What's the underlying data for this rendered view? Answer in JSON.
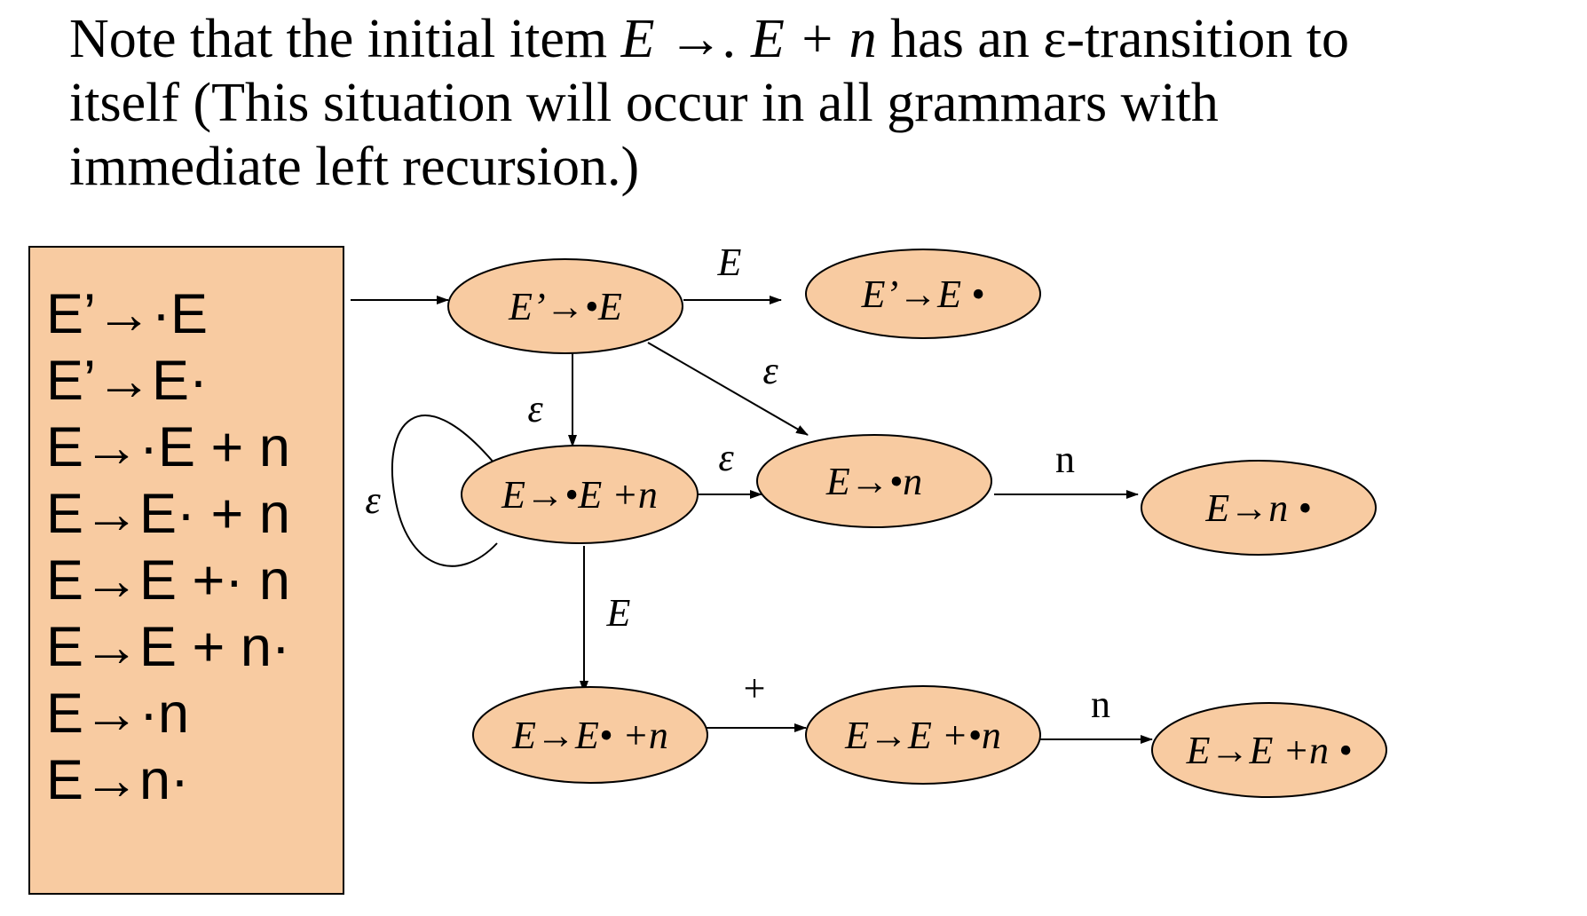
{
  "caption": {
    "line1_a": "Note that the initial item ",
    "line1_item": "E →. E + n",
    "line1_b": " has an ε-transition to",
    "line2": "itself (This situation will occur in all grammars with",
    "line3": "immediate left recursion.)"
  },
  "items": [
    "E’→·E",
    "E’→E·",
    "E→·E + n",
    "E→E· + n",
    "E→E +· n",
    "E→E + n·",
    "E→·n",
    "E→n·"
  ],
  "nodes": [
    {
      "id": "n1",
      "label": "E’→•E"
    },
    {
      "id": "n2",
      "label": "E’→E •"
    },
    {
      "id": "n3",
      "label": "E→•E +n"
    },
    {
      "id": "n4",
      "label": "E→•n"
    },
    {
      "id": "n5",
      "label": "E→n •"
    },
    {
      "id": "n6",
      "label": "E→E• +n"
    },
    {
      "id": "n7",
      "label": "E→E +•n"
    },
    {
      "id": "n8",
      "label": "E→E +n •"
    }
  ],
  "edges": [
    {
      "from": "panel",
      "to": "n1",
      "label": ""
    },
    {
      "from": "n1",
      "to": "n2",
      "label": "E"
    },
    {
      "from": "n1",
      "to": "n4",
      "label": "ε"
    },
    {
      "from": "n1",
      "to": "n3",
      "label": "ε"
    },
    {
      "from": "n3",
      "to": "n3",
      "label": "ε"
    },
    {
      "from": "n3",
      "to": "n4",
      "label": "ε"
    },
    {
      "from": "n4",
      "to": "n5",
      "label": "n"
    },
    {
      "from": "n3",
      "to": "n6",
      "label": "E"
    },
    {
      "from": "n6",
      "to": "n7",
      "label": "+"
    },
    {
      "from": "n7",
      "to": "n8",
      "label": "n"
    }
  ],
  "colors": {
    "node_fill": "#f8cba1",
    "stroke": "#000000"
  }
}
